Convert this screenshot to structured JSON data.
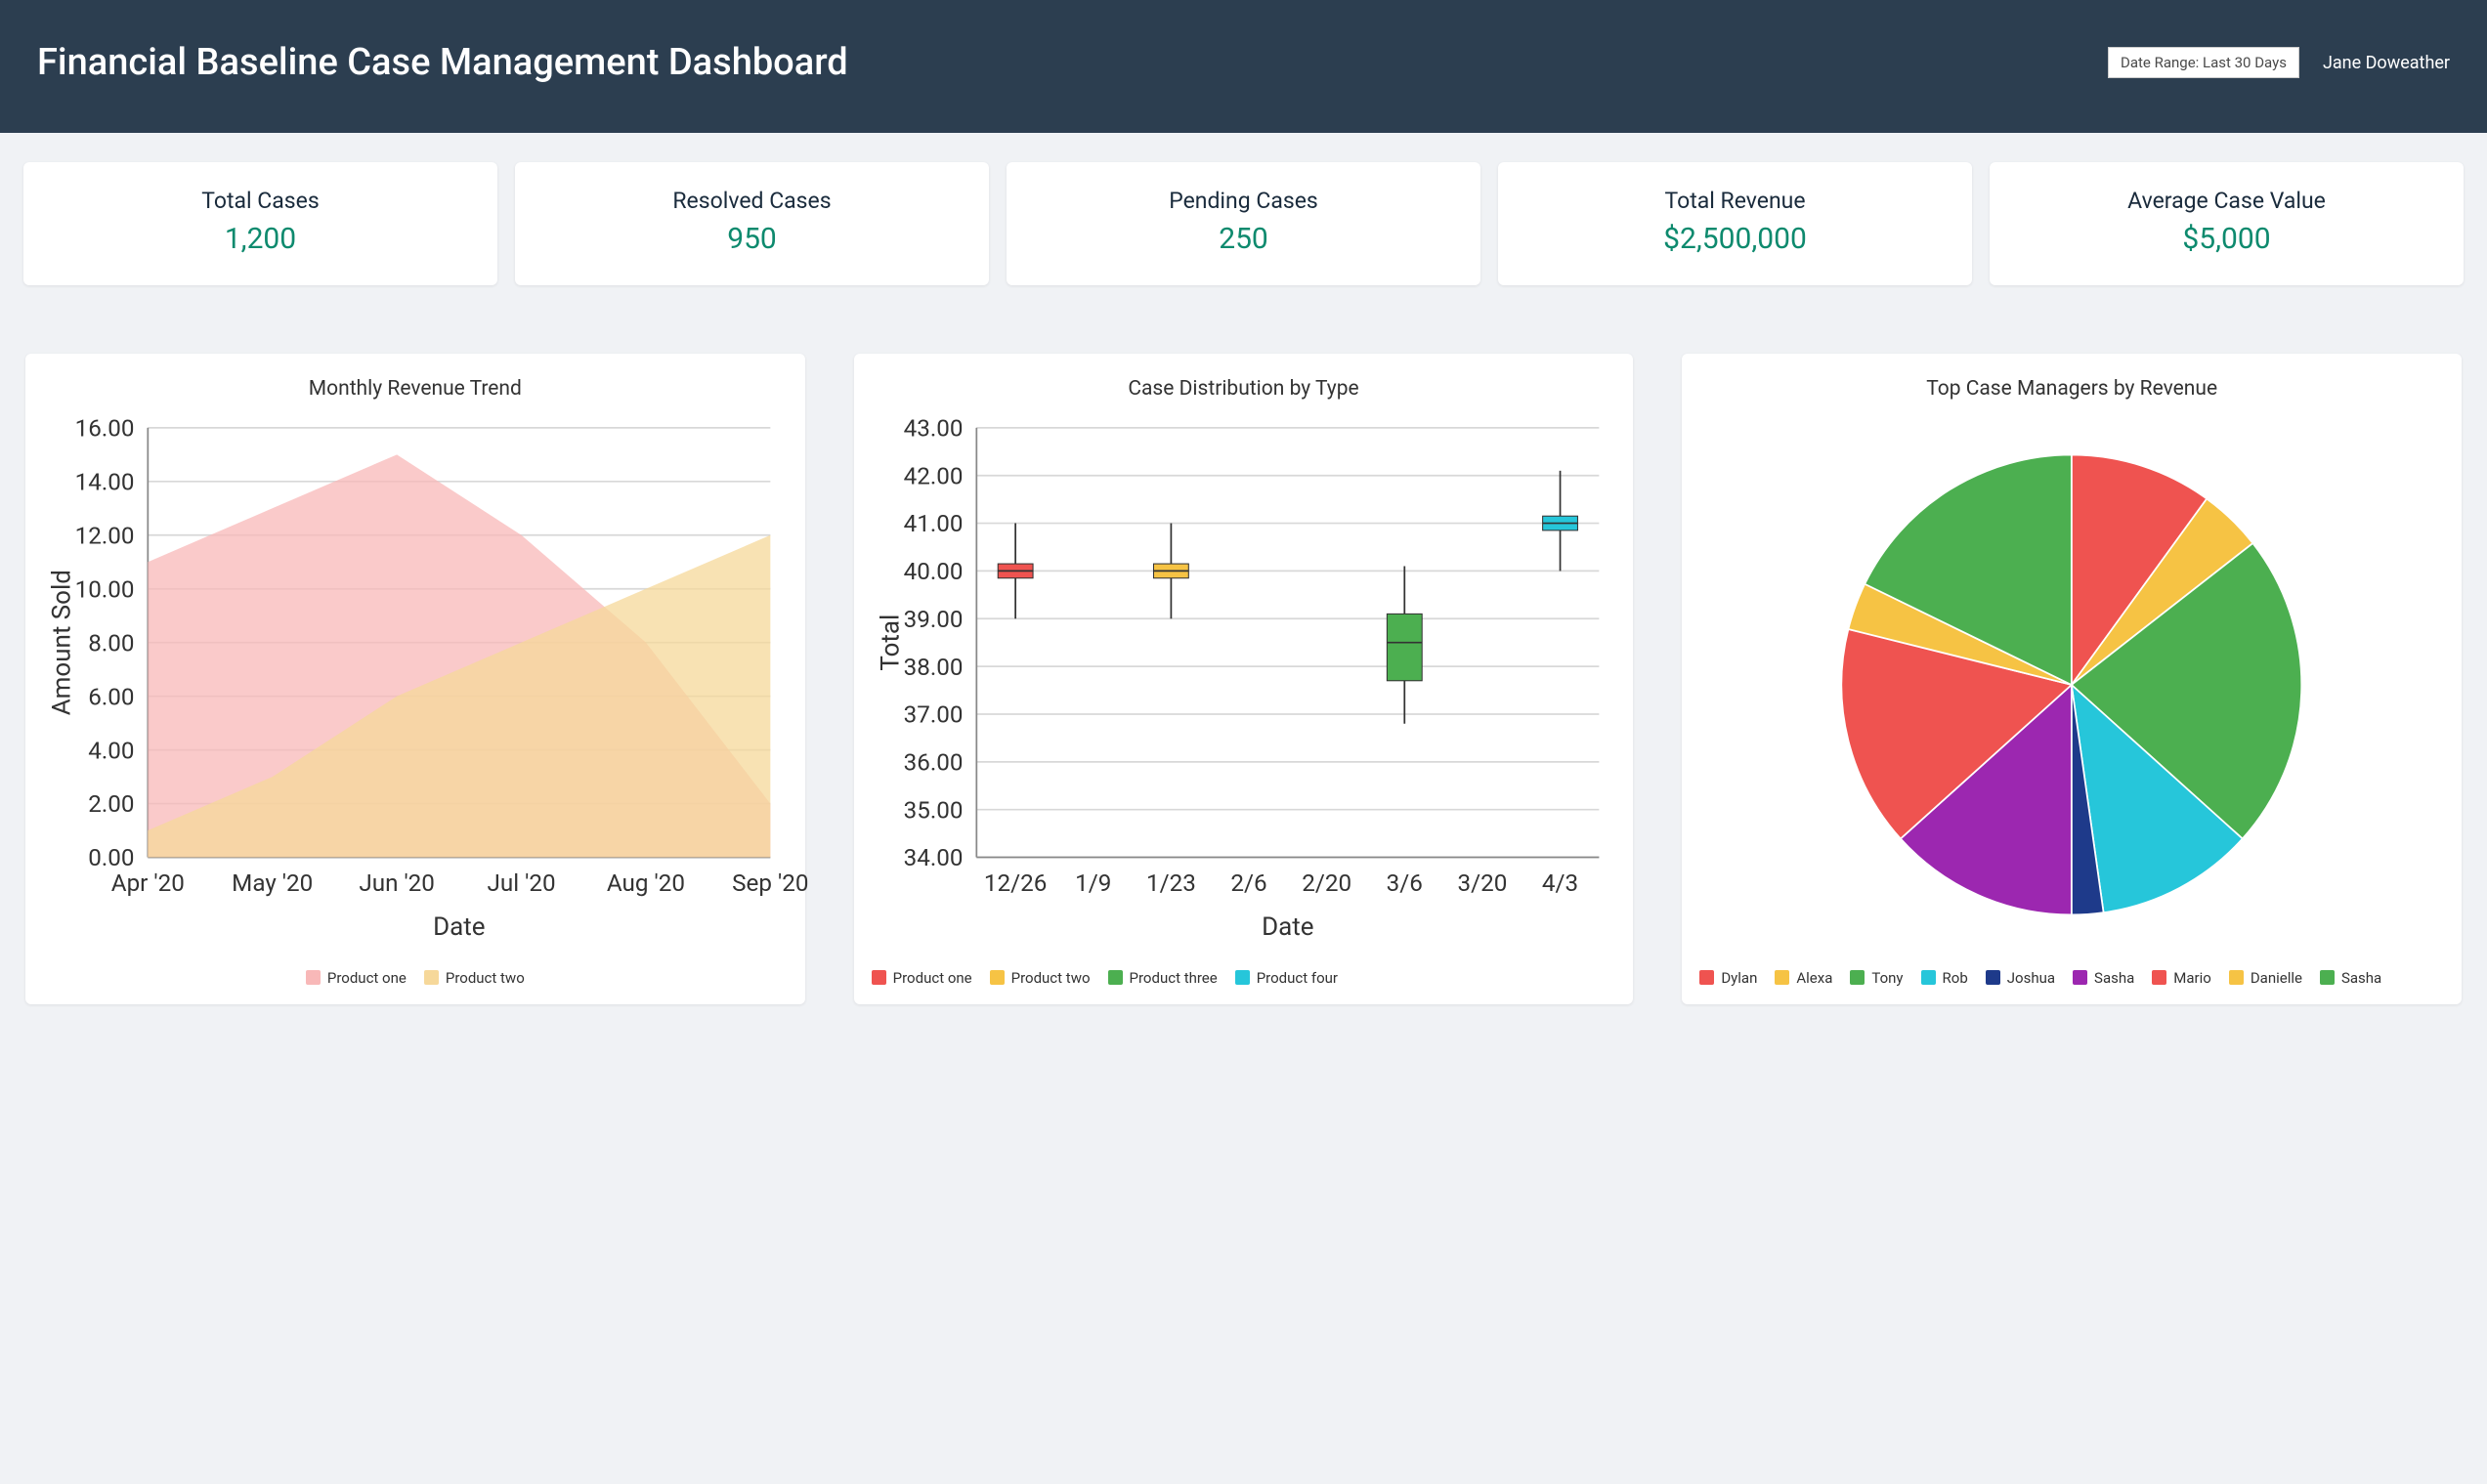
{
  "header": {
    "title": "Financial Baseline Case Management Dashboard",
    "date_range_label": "Date Range: Last 30 Days",
    "user_name": "Jane Doweather",
    "bg_color": "#2c3e50",
    "text_color": "#ffffff"
  },
  "kpis": [
    {
      "label": "Total Cases",
      "value": "1,200"
    },
    {
      "label": "Resolved Cases",
      "value": "950"
    },
    {
      "label": "Pending Cases",
      "value": "250"
    },
    {
      "label": "Total Revenue",
      "value": "$2,500,000"
    },
    {
      "label": "Average Case Value",
      "value": "$5,000"
    }
  ],
  "kpi_style": {
    "label_color": "#1a2b3c",
    "value_color": "#0e8a6e",
    "card_bg": "#ffffff"
  },
  "area_chart": {
    "title": "Monthly Revenue Trend",
    "type": "area",
    "x_label": "Date",
    "y_label": "Amount Sold",
    "categories": [
      "Apr '20",
      "May '20",
      "Jun '20",
      "Jul '20",
      "Aug '20",
      "Sep '20"
    ],
    "ylim": [
      0,
      16
    ],
    "ytick_step": 2,
    "y_decimals": 2,
    "series": [
      {
        "name": "Product one",
        "color": "#f8b8b8",
        "values": [
          11,
          13,
          15,
          12,
          8,
          2
        ]
      },
      {
        "name": "Product two",
        "color": "#f6d89a",
        "values": [
          1,
          3,
          6,
          8,
          10,
          12
        ]
      }
    ],
    "grid_color": "#d8d8d8",
    "axis_color": "#888888",
    "label_fontsize": 14,
    "title_fontsize": 21
  },
  "box_chart": {
    "title": "Case Distribution by Type",
    "type": "boxplot",
    "x_label": "Date",
    "y_label": "Total",
    "categories": [
      "12/26",
      "1/9",
      "1/23",
      "2/6",
      "2/20",
      "3/6",
      "3/20",
      "4/3"
    ],
    "ylim": [
      34,
      43
    ],
    "ytick_step": 1,
    "y_decimals": 2,
    "boxes": [
      {
        "x_index": 0,
        "series": 0,
        "low": 39.0,
        "q1": 39.85,
        "median": 40.0,
        "q3": 40.15,
        "high": 41.0
      },
      {
        "x_index": 2,
        "series": 1,
        "low": 39.0,
        "q1": 39.85,
        "median": 40.0,
        "q3": 40.15,
        "high": 41.0
      },
      {
        "x_index": 5,
        "series": 2,
        "low": 36.8,
        "q1": 37.7,
        "median": 38.5,
        "q3": 39.1,
        "high": 40.1
      },
      {
        "x_index": 7,
        "series": 3,
        "low": 40.0,
        "q1": 40.85,
        "median": 41.0,
        "q3": 41.15,
        "high": 42.1
      }
    ],
    "series": [
      {
        "name": "Product one",
        "color": "#ef5350"
      },
      {
        "name": "Product two",
        "color": "#f6c344"
      },
      {
        "name": "Product three",
        "color": "#4caf50"
      },
      {
        "name": "Product four",
        "color": "#26c6da"
      }
    ],
    "grid_color": "#d8d8d8",
    "axis_color": "#888888",
    "box_width": 0.45
  },
  "pie_chart": {
    "title": "Top Case Managers by Revenue",
    "type": "pie",
    "slices": [
      {
        "name": "Dylan",
        "value": 9,
        "color": "#ef5350"
      },
      {
        "name": "Alexa",
        "value": 4,
        "color": "#f6c344"
      },
      {
        "name": "Tony",
        "value": 20,
        "color": "#4caf50"
      },
      {
        "name": "Rob",
        "value": 10,
        "color": "#26c6da"
      },
      {
        "name": "Joshua",
        "value": 2,
        "color": "#1e3a8a"
      },
      {
        "name": "Sasha",
        "value": 12,
        "color": "#9c27b0"
      },
      {
        "name": "Mario",
        "value": 14,
        "color": "#ef5350"
      },
      {
        "name": "Danielle",
        "value": 3,
        "color": "#f6c344"
      },
      {
        "name": "Sasha",
        "value": 16,
        "color": "#4caf50"
      }
    ],
    "start_angle_deg": -90,
    "radius_ratio": 0.85
  },
  "page": {
    "bg_color": "#f0f2f5"
  }
}
